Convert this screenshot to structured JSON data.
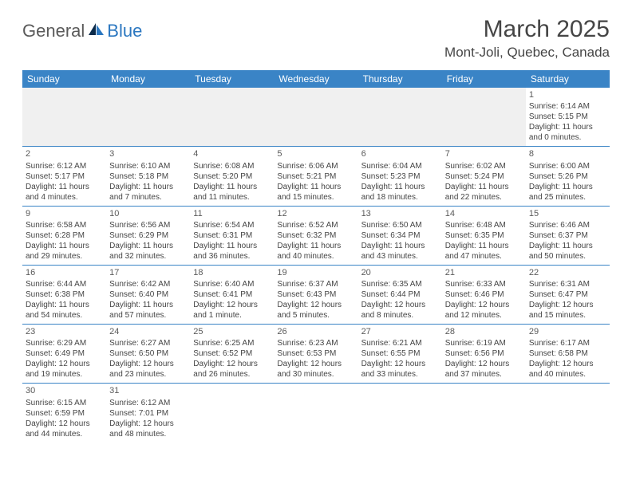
{
  "logo": {
    "text_general": "General",
    "text_blue": "Blue"
  },
  "title": "March 2025",
  "location": "Mont-Joli, Quebec, Canada",
  "header_color": "#3a84c6",
  "day_headers": [
    "Sunday",
    "Monday",
    "Tuesday",
    "Wednesday",
    "Thursday",
    "Friday",
    "Saturday"
  ],
  "weeks": [
    [
      null,
      null,
      null,
      null,
      null,
      null,
      {
        "n": "1",
        "sr": "Sunrise: 6:14 AM",
        "ss": "Sunset: 5:15 PM",
        "dl": "Daylight: 11 hours and 0 minutes."
      }
    ],
    [
      {
        "n": "2",
        "sr": "Sunrise: 6:12 AM",
        "ss": "Sunset: 5:17 PM",
        "dl": "Daylight: 11 hours and 4 minutes."
      },
      {
        "n": "3",
        "sr": "Sunrise: 6:10 AM",
        "ss": "Sunset: 5:18 PM",
        "dl": "Daylight: 11 hours and 7 minutes."
      },
      {
        "n": "4",
        "sr": "Sunrise: 6:08 AM",
        "ss": "Sunset: 5:20 PM",
        "dl": "Daylight: 11 hours and 11 minutes."
      },
      {
        "n": "5",
        "sr": "Sunrise: 6:06 AM",
        "ss": "Sunset: 5:21 PM",
        "dl": "Daylight: 11 hours and 15 minutes."
      },
      {
        "n": "6",
        "sr": "Sunrise: 6:04 AM",
        "ss": "Sunset: 5:23 PM",
        "dl": "Daylight: 11 hours and 18 minutes."
      },
      {
        "n": "7",
        "sr": "Sunrise: 6:02 AM",
        "ss": "Sunset: 5:24 PM",
        "dl": "Daylight: 11 hours and 22 minutes."
      },
      {
        "n": "8",
        "sr": "Sunrise: 6:00 AM",
        "ss": "Sunset: 5:26 PM",
        "dl": "Daylight: 11 hours and 25 minutes."
      }
    ],
    [
      {
        "n": "9",
        "sr": "Sunrise: 6:58 AM",
        "ss": "Sunset: 6:28 PM",
        "dl": "Daylight: 11 hours and 29 minutes."
      },
      {
        "n": "10",
        "sr": "Sunrise: 6:56 AM",
        "ss": "Sunset: 6:29 PM",
        "dl": "Daylight: 11 hours and 32 minutes."
      },
      {
        "n": "11",
        "sr": "Sunrise: 6:54 AM",
        "ss": "Sunset: 6:31 PM",
        "dl": "Daylight: 11 hours and 36 minutes."
      },
      {
        "n": "12",
        "sr": "Sunrise: 6:52 AM",
        "ss": "Sunset: 6:32 PM",
        "dl": "Daylight: 11 hours and 40 minutes."
      },
      {
        "n": "13",
        "sr": "Sunrise: 6:50 AM",
        "ss": "Sunset: 6:34 PM",
        "dl": "Daylight: 11 hours and 43 minutes."
      },
      {
        "n": "14",
        "sr": "Sunrise: 6:48 AM",
        "ss": "Sunset: 6:35 PM",
        "dl": "Daylight: 11 hours and 47 minutes."
      },
      {
        "n": "15",
        "sr": "Sunrise: 6:46 AM",
        "ss": "Sunset: 6:37 PM",
        "dl": "Daylight: 11 hours and 50 minutes."
      }
    ],
    [
      {
        "n": "16",
        "sr": "Sunrise: 6:44 AM",
        "ss": "Sunset: 6:38 PM",
        "dl": "Daylight: 11 hours and 54 minutes."
      },
      {
        "n": "17",
        "sr": "Sunrise: 6:42 AM",
        "ss": "Sunset: 6:40 PM",
        "dl": "Daylight: 11 hours and 57 minutes."
      },
      {
        "n": "18",
        "sr": "Sunrise: 6:40 AM",
        "ss": "Sunset: 6:41 PM",
        "dl": "Daylight: 12 hours and 1 minute."
      },
      {
        "n": "19",
        "sr": "Sunrise: 6:37 AM",
        "ss": "Sunset: 6:43 PM",
        "dl": "Daylight: 12 hours and 5 minutes."
      },
      {
        "n": "20",
        "sr": "Sunrise: 6:35 AM",
        "ss": "Sunset: 6:44 PM",
        "dl": "Daylight: 12 hours and 8 minutes."
      },
      {
        "n": "21",
        "sr": "Sunrise: 6:33 AM",
        "ss": "Sunset: 6:46 PM",
        "dl": "Daylight: 12 hours and 12 minutes."
      },
      {
        "n": "22",
        "sr": "Sunrise: 6:31 AM",
        "ss": "Sunset: 6:47 PM",
        "dl": "Daylight: 12 hours and 15 minutes."
      }
    ],
    [
      {
        "n": "23",
        "sr": "Sunrise: 6:29 AM",
        "ss": "Sunset: 6:49 PM",
        "dl": "Daylight: 12 hours and 19 minutes."
      },
      {
        "n": "24",
        "sr": "Sunrise: 6:27 AM",
        "ss": "Sunset: 6:50 PM",
        "dl": "Daylight: 12 hours and 23 minutes."
      },
      {
        "n": "25",
        "sr": "Sunrise: 6:25 AM",
        "ss": "Sunset: 6:52 PM",
        "dl": "Daylight: 12 hours and 26 minutes."
      },
      {
        "n": "26",
        "sr": "Sunrise: 6:23 AM",
        "ss": "Sunset: 6:53 PM",
        "dl": "Daylight: 12 hours and 30 minutes."
      },
      {
        "n": "27",
        "sr": "Sunrise: 6:21 AM",
        "ss": "Sunset: 6:55 PM",
        "dl": "Daylight: 12 hours and 33 minutes."
      },
      {
        "n": "28",
        "sr": "Sunrise: 6:19 AM",
        "ss": "Sunset: 6:56 PM",
        "dl": "Daylight: 12 hours and 37 minutes."
      },
      {
        "n": "29",
        "sr": "Sunrise: 6:17 AM",
        "ss": "Sunset: 6:58 PM",
        "dl": "Daylight: 12 hours and 40 minutes."
      }
    ],
    [
      {
        "n": "30",
        "sr": "Sunrise: 6:15 AM",
        "ss": "Sunset: 6:59 PM",
        "dl": "Daylight: 12 hours and 44 minutes."
      },
      {
        "n": "31",
        "sr": "Sunrise: 6:12 AM",
        "ss": "Sunset: 7:01 PM",
        "dl": "Daylight: 12 hours and 48 minutes."
      },
      null,
      null,
      null,
      null,
      null
    ]
  ]
}
